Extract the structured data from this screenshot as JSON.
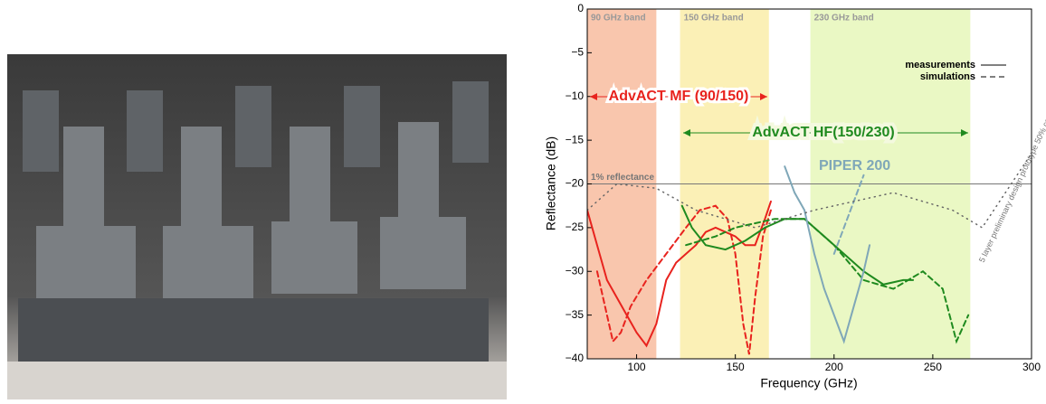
{
  "chart_data": {
    "type": "line",
    "x_label": "Frequency (GHz)",
    "y_label": "Reflectance (dB)",
    "xlim": [
      75,
      300
    ],
    "ylim": [
      -40,
      0
    ],
    "xticks": [
      100,
      150,
      200,
      250,
      300
    ],
    "yticks": [
      0,
      {
        "value": -5,
        "label": "−5"
      },
      {
        "value": -10,
        "label": "−10"
      },
      {
        "value": -15,
        "label": "−15"
      },
      {
        "value": -20,
        "label": "−20"
      },
      {
        "value": -25,
        "label": "−25"
      },
      {
        "value": -30,
        "label": "−30"
      },
      {
        "value": -35,
        "label": "−35"
      },
      {
        "value": -40,
        "label": "−40"
      }
    ],
    "bands": [
      {
        "label": "90 GHz band",
        "range": [
          75,
          110
        ],
        "color": "#f9c6ad"
      },
      {
        "label": "150 GHz band",
        "range": [
          122,
          167
        ],
        "color": "#fbf0b6"
      },
      {
        "label": "230 GHz band",
        "range": [
          188,
          269
        ],
        "color": "#eaf8c4"
      }
    ],
    "reference": {
      "label": "1% reflectance",
      "value": -20,
      "color": "#777777"
    },
    "legend": [
      {
        "label": "measurements",
        "dash": "solid"
      },
      {
        "label": "simulations",
        "dash": "dashed"
      }
    ],
    "annotations": {
      "mf": "AdvACT MF (90/150)",
      "hf": "AdvACT HF(150/230)",
      "piper": "PIPER 200",
      "design": "5 layer preliminary design prototype 50% complete"
    },
    "series": [
      {
        "color": "#e8231e",
        "dash": "solid",
        "x": [
          75,
          80,
          85,
          90,
          95,
          100,
          105,
          110,
          115,
          120,
          125,
          130,
          135,
          140,
          145,
          150,
          155,
          160,
          165,
          168
        ],
        "values": [
          -23,
          -27,
          -31,
          -33,
          -35,
          -37,
          -38.5,
          -36,
          -31,
          -29,
          -28,
          -27,
          -25.5,
          -25,
          -25.5,
          -26,
          -27,
          -27,
          -24,
          -22
        ]
      },
      {
        "color": "#e8231e",
        "dash": "dashed",
        "x": [
          80,
          85,
          88,
          92,
          97,
          105,
          115,
          125,
          132,
          140,
          146,
          150,
          154,
          157,
          160,
          164,
          168
        ],
        "values": [
          -30,
          -35,
          -38,
          -37,
          -34,
          -31,
          -28,
          -25,
          -23,
          -22.5,
          -24,
          -28,
          -36,
          -39.5,
          -33,
          -26,
          -23
        ]
      },
      {
        "color": "#1f8a1f",
        "dash": "solid",
        "x": [
          123,
          128,
          135,
          145,
          155,
          165,
          175,
          185,
          195,
          205,
          215,
          225,
          235,
          240
        ],
        "values": [
          -22.5,
          -25,
          -27,
          -27.5,
          -26.5,
          -25,
          -24,
          -24,
          -26,
          -28,
          -30,
          -31.5,
          -31,
          -31
        ]
      },
      {
        "color": "#1f8a1f",
        "dash": "dashed",
        "x": [
          125,
          140,
          150,
          170,
          185,
          200,
          215,
          230,
          245,
          255,
          262,
          268
        ],
        "values": [
          -27,
          -26,
          -25,
          -24,
          -24,
          -27,
          -31,
          -32,
          -30,
          -32,
          -38,
          -35
        ]
      },
      {
        "color": "#7fa7b8",
        "dash": "solid",
        "x": [
          175,
          180,
          185,
          190,
          195,
          200,
          205,
          210,
          215,
          218
        ],
        "values": [
          -18,
          -21,
          -23,
          -28,
          -32,
          -35,
          -38,
          -34,
          -30,
          -27
        ]
      },
      {
        "color": "#7fa7b8",
        "dash": "dashed",
        "x": [
          200,
          205,
          210,
          215
        ],
        "values": [
          -28,
          -25,
          -22,
          -19
        ]
      },
      {
        "color": "#666666",
        "dash": "dotted",
        "x": [
          75,
          90,
          110,
          130,
          160,
          175,
          190,
          210,
          230,
          260,
          275,
          300
        ],
        "values": [
          -23,
          -20,
          -20.5,
          -23,
          -25,
          -24,
          -23,
          -22,
          -21,
          -23,
          -25,
          -16.5
        ]
      }
    ]
  }
}
